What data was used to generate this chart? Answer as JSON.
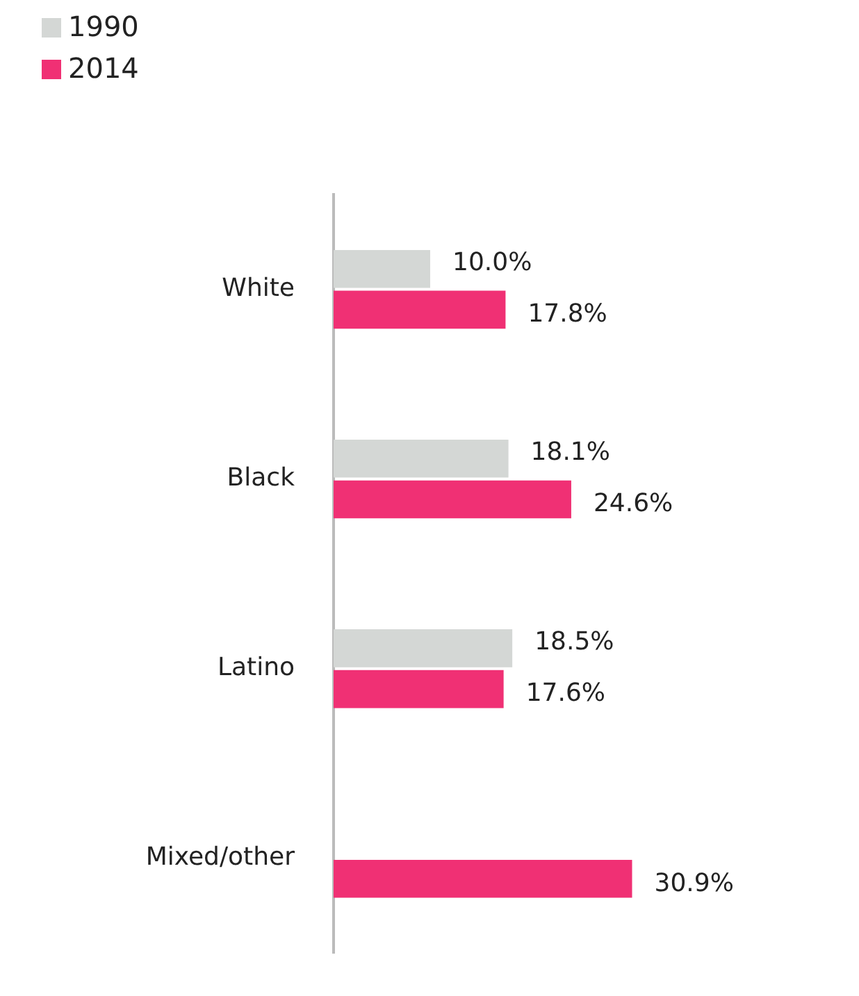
{
  "chart_data": {
    "type": "bar",
    "orientation": "horizontal",
    "categories": [
      "White",
      "Black",
      "Latino",
      "Mixed/other"
    ],
    "series": [
      {
        "name": "1990",
        "color": "#d4d7d5",
        "values": [
          10.0,
          18.1,
          18.5,
          null
        ],
        "value_labels": [
          "10.0%",
          "18.1%",
          "18.5%",
          null
        ]
      },
      {
        "name": "2014",
        "color": "#f03074",
        "values": [
          17.8,
          24.6,
          17.6,
          30.9
        ],
        "value_labels": [
          "17.8%",
          "24.6%",
          "17.6%",
          "30.9%"
        ]
      }
    ],
    "legend": "top left",
    "grid": false
  }
}
